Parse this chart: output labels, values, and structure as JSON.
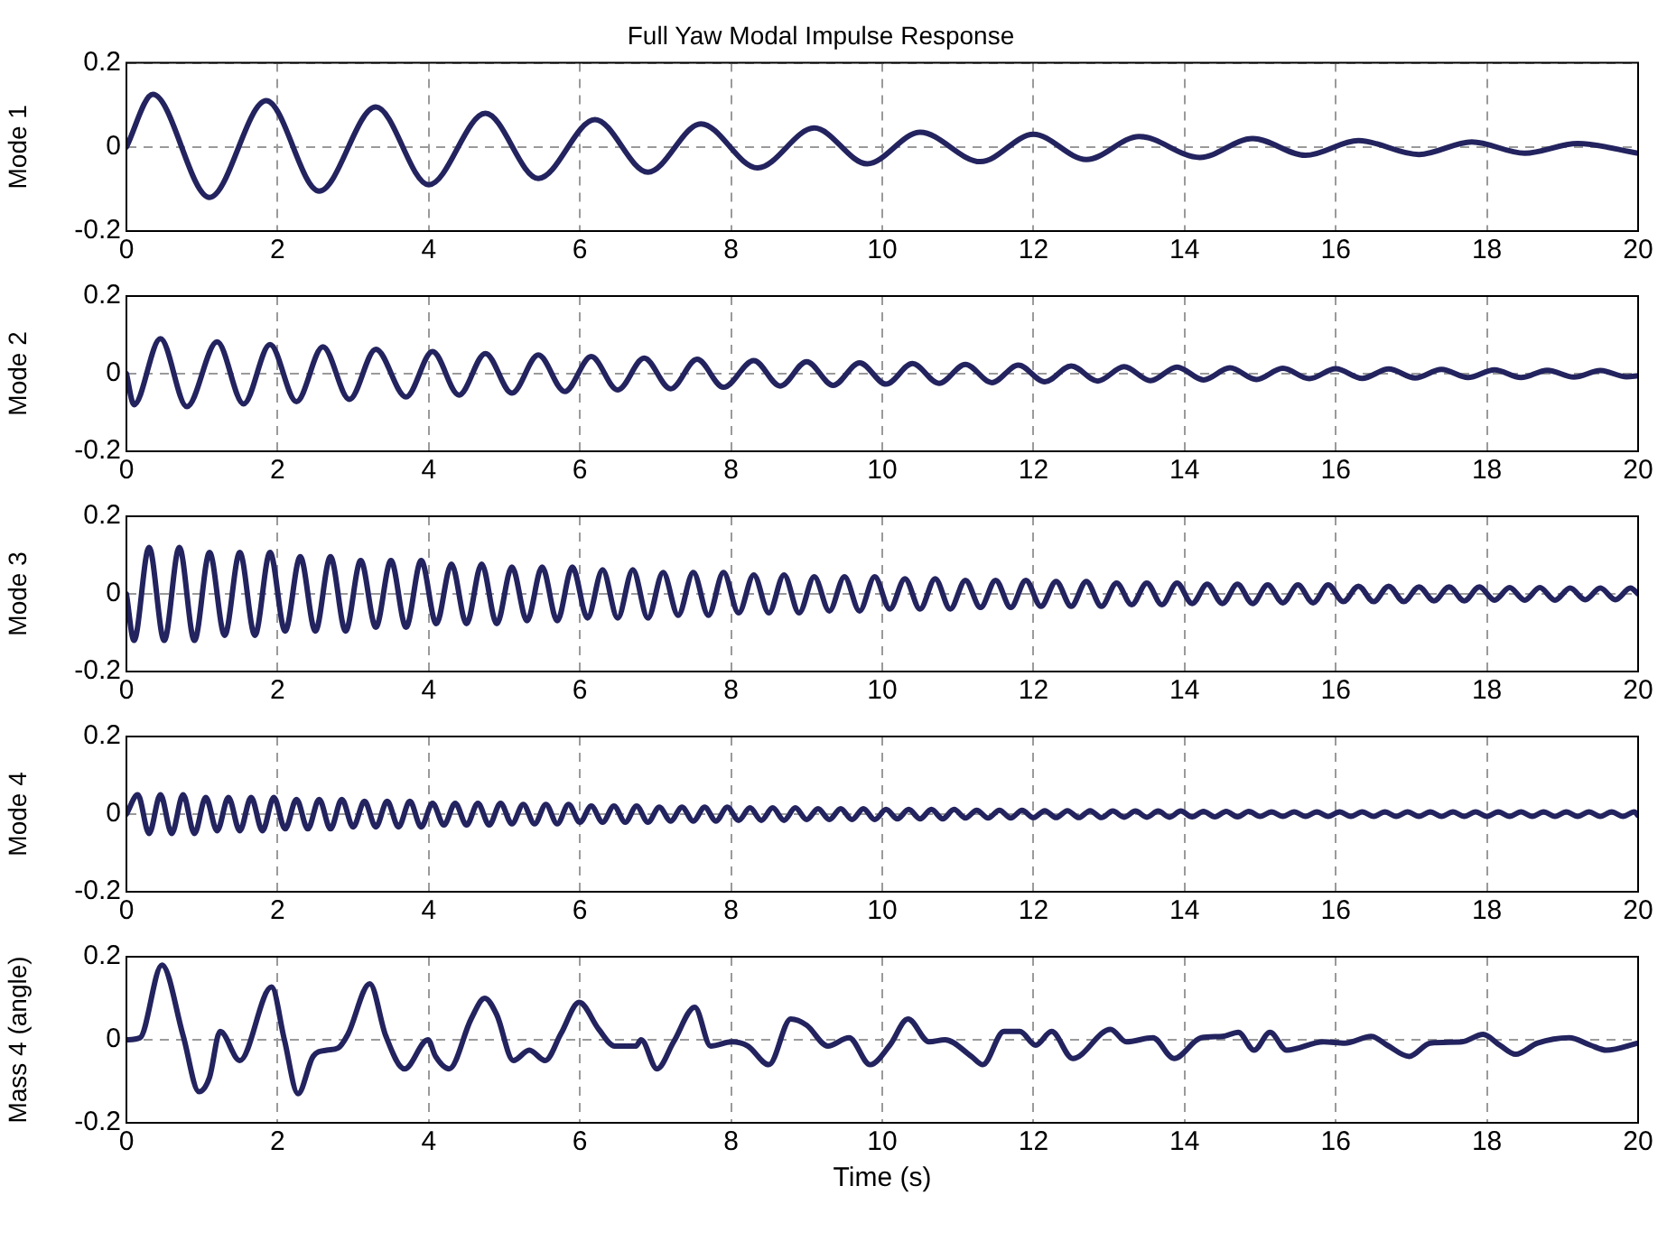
{
  "chart_data": [
    {
      "type": "line",
      "title": "Full Yaw Modal Impulse Response",
      "ylabel": "Mode 1",
      "xlim": [
        0,
        20
      ],
      "xticks": [
        0,
        2,
        4,
        6,
        8,
        10,
        12,
        14,
        16,
        18,
        20
      ],
      "ylim": [
        -0.2,
        0.2
      ],
      "yticks": [
        -0.2,
        0,
        0.2
      ],
      "grid": true,
      "series": [
        {
          "color": "#23235f",
          "x": [
            0,
            0.35,
            1.1,
            1.85,
            2.55,
            3.3,
            4.0,
            4.75,
            5.45,
            6.2,
            6.9,
            7.6,
            8.35,
            9.1,
            9.8,
            10.5,
            11.3,
            12,
            12.7,
            13.4,
            14.2,
            14.9,
            15.6,
            16.3,
            17.1,
            17.8,
            18.5,
            19.2,
            20
          ],
          "values": [
            0,
            0.125,
            -0.12,
            0.11,
            -0.105,
            0.095,
            -0.09,
            0.08,
            -0.075,
            0.065,
            -0.06,
            0.055,
            -0.05,
            0.045,
            -0.04,
            0.035,
            -0.035,
            0.03,
            -0.03,
            0.025,
            -0.025,
            0.02,
            -0.02,
            0.015,
            -0.018,
            0.012,
            -0.015,
            0.008,
            -0.015
          ]
        }
      ]
    },
    {
      "type": "line",
      "ylabel": "Mode 2",
      "xlim": [
        0,
        20
      ],
      "xticks": [
        0,
        2,
        4,
        6,
        8,
        10,
        12,
        14,
        16,
        18,
        20
      ],
      "ylim": [
        -0.2,
        0.2
      ],
      "yticks": [
        -0.2,
        0,
        0.2
      ],
      "grid": true,
      "series": [
        {
          "color": "#23235f",
          "x": [
            0,
            0.1,
            0.45,
            0.8,
            1.2,
            1.55,
            1.9,
            2.25,
            2.6,
            2.95,
            3.3,
            3.7,
            4.05,
            4.4,
            4.75,
            5.1,
            5.45,
            5.8,
            6.15,
            6.5,
            6.85,
            7.2,
            7.55,
            7.9,
            8.3,
            8.65,
            9,
            9.35,
            9.7,
            10.05,
            10.4,
            10.75,
            11.1,
            11.45,
            11.8,
            12.15,
            12.5,
            12.85,
            13.2,
            13.55,
            13.9,
            14.25,
            14.6,
            14.95,
            15.3,
            15.65,
            16,
            16.35,
            16.7,
            17.05,
            17.4,
            17.75,
            18.1,
            18.45,
            18.8,
            19.15,
            19.5,
            19.85,
            20
          ],
          "values": [
            0,
            -0.08,
            0.09,
            -0.085,
            0.082,
            -0.078,
            0.075,
            -0.072,
            0.069,
            -0.066,
            0.063,
            -0.06,
            0.057,
            -0.055,
            0.052,
            -0.05,
            0.048,
            -0.046,
            0.044,
            -0.042,
            0.04,
            -0.039,
            0.037,
            -0.035,
            0.034,
            -0.032,
            0.031,
            -0.03,
            0.028,
            -0.027,
            0.026,
            -0.025,
            0.024,
            -0.023,
            0.022,
            -0.021,
            0.02,
            -0.019,
            0.018,
            -0.018,
            0.017,
            -0.016,
            0.015,
            -0.015,
            0.014,
            -0.013,
            0.013,
            -0.012,
            0.012,
            -0.011,
            0.011,
            -0.01,
            0.01,
            -0.01,
            0.009,
            -0.009,
            0.008,
            -0.008,
            -0.005
          ]
        }
      ]
    },
    {
      "type": "line",
      "ylabel": "Mode 3",
      "xlim": [
        0,
        20
      ],
      "xticks": [
        0,
        2,
        4,
        6,
        8,
        10,
        12,
        14,
        16,
        18,
        20
      ],
      "ylim": [
        -0.2,
        0.2
      ],
      "yticks": [
        -0.2,
        0,
        0.2
      ],
      "grid": true,
      "series": [
        {
          "color": "#23235f",
          "x": [
            0,
            0.1,
            0.3,
            0.5,
            0.7,
            0.9,
            1.1,
            1.3,
            1.5,
            1.7,
            1.9,
            2.1,
            2.3,
            2.5,
            2.7,
            2.9,
            3.1,
            3.3,
            3.5,
            3.7,
            3.9,
            4.1,
            4.3,
            4.5,
            4.7,
            4.9,
            5.1,
            5.3,
            5.5,
            5.7,
            5.9,
            6.1,
            6.3,
            6.5,
            6.7,
            6.9,
            7.1,
            7.3,
            7.5,
            7.7,
            7.9,
            8.1,
            8.3,
            8.5,
            8.7,
            8.9,
            9.1,
            9.3,
            9.5,
            9.7,
            9.9,
            10.1,
            10.3,
            10.5,
            10.7,
            10.9,
            11.1,
            11.3,
            11.5,
            11.7,
            11.9,
            12.1,
            12.3,
            12.5,
            12.7,
            12.9,
            13.1,
            13.3,
            13.5,
            13.7,
            13.9,
            14.1,
            14.3,
            14.5,
            14.7,
            14.9,
            15.1,
            15.3,
            15.5,
            15.7,
            15.9,
            16.1,
            16.3,
            16.5,
            16.7,
            16.9,
            17.1,
            17.3,
            17.5,
            17.7,
            17.9,
            18.1,
            18.3,
            18.5,
            18.7,
            18.9,
            19.1,
            19.3,
            19.5,
            19.7,
            19.9,
            20
          ],
          "values": [
            0,
            -0.12,
            0.12,
            -0.12,
            0.12,
            -0.12,
            0.107,
            -0.107,
            0.107,
            -0.107,
            0.107,
            -0.096,
            0.096,
            -0.096,
            0.096,
            -0.096,
            0.086,
            -0.086,
            0.086,
            -0.086,
            0.086,
            -0.077,
            0.077,
            -0.077,
            0.077,
            -0.077,
            0.069,
            -0.069,
            0.069,
            -0.069,
            0.069,
            -0.062,
            0.062,
            -0.062,
            0.062,
            -0.062,
            0.055,
            -0.055,
            0.055,
            -0.055,
            0.055,
            -0.049,
            0.049,
            -0.049,
            0.049,
            -0.049,
            0.044,
            -0.044,
            0.044,
            -0.044,
            0.044,
            -0.039,
            0.039,
            -0.039,
            0.039,
            -0.039,
            0.035,
            -0.035,
            0.035,
            -0.035,
            0.035,
            -0.032,
            0.032,
            -0.032,
            0.032,
            -0.032,
            0.028,
            -0.028,
            0.028,
            -0.028,
            0.028,
            -0.025,
            0.025,
            -0.025,
            0.025,
            -0.025,
            0.023,
            -0.023,
            0.023,
            -0.023,
            0.023,
            -0.02,
            0.02,
            -0.02,
            0.02,
            -0.02,
            0.018,
            -0.018,
            0.018,
            -0.018,
            0.018,
            -0.016,
            0.016,
            -0.016,
            0.016,
            -0.016,
            0.015,
            -0.015,
            0.015,
            -0.015,
            0.015,
            0
          ]
        }
      ]
    },
    {
      "type": "line",
      "ylabel": "Mode 4",
      "xlim": [
        0,
        20
      ],
      "xticks": [
        0,
        2,
        4,
        6,
        8,
        10,
        12,
        14,
        16,
        18,
        20
      ],
      "ylim": [
        -0.2,
        0.2
      ],
      "yticks": [
        -0.2,
        0,
        0.2
      ],
      "grid": true,
      "series": [
        {
          "color": "#23235f",
          "x": [
            0,
            0.15,
            0.3,
            0.45,
            0.6,
            0.75,
            0.9,
            1.05,
            1.2,
            1.35,
            1.5,
            1.65,
            1.8,
            1.95,
            2.1,
            2.25,
            2.4,
            2.55,
            2.7,
            2.85,
            3,
            3.15,
            3.3,
            3.45,
            3.6,
            3.75,
            3.9,
            4.05,
            4.2,
            4.35,
            4.5,
            4.65,
            4.8,
            4.95,
            5.1,
            5.25,
            5.4,
            5.55,
            5.7,
            5.85,
            6,
            6.15,
            6.3,
            6.45,
            6.6,
            6.75,
            6.9,
            7.05,
            7.2,
            7.35,
            7.5,
            7.65,
            7.8,
            7.95,
            8.1,
            8.25,
            8.4,
            8.55,
            8.7,
            8.85,
            9,
            9.15,
            9.3,
            9.45,
            9.6,
            9.75,
            9.9,
            10.05,
            10.2,
            10.35,
            10.5,
            10.65,
            10.8,
            10.95,
            11.1,
            11.25,
            11.4,
            11.55,
            11.7,
            11.85,
            12,
            12.15,
            12.3,
            12.45,
            12.6,
            12.75,
            12.9,
            13.05,
            13.2,
            13.35,
            13.5,
            13.65,
            13.8,
            13.95,
            14.1,
            14.25,
            14.4,
            14.55,
            14.7,
            14.85,
            15,
            15.15,
            15.3,
            15.45,
            15.6,
            15.75,
            15.9,
            16.05,
            16.2,
            16.35,
            16.5,
            16.65,
            16.8,
            16.95,
            17.1,
            17.25,
            17.4,
            17.55,
            17.7,
            17.85,
            18,
            18.15,
            18.3,
            18.45,
            18.6,
            18.75,
            18.9,
            19.05,
            19.2,
            19.35,
            19.5,
            19.65,
            19.8,
            19.95,
            20
          ],
          "values": [
            0,
            0.05,
            -0.05,
            0.05,
            -0.05,
            0.05,
            -0.05,
            0.043,
            -0.043,
            0.043,
            -0.043,
            0.043,
            -0.043,
            0.043,
            -0.038,
            0.038,
            -0.038,
            0.038,
            -0.038,
            0.038,
            -0.033,
            0.033,
            -0.033,
            0.033,
            -0.033,
            0.033,
            -0.033,
            0.028,
            -0.028,
            0.028,
            -0.028,
            0.028,
            -0.028,
            0.028,
            -0.025,
            0.025,
            -0.025,
            0.025,
            -0.025,
            0.025,
            -0.021,
            0.021,
            -0.021,
            0.021,
            -0.021,
            0.021,
            -0.021,
            0.018,
            -0.018,
            0.018,
            -0.018,
            0.018,
            -0.018,
            0.018,
            -0.016,
            0.016,
            -0.016,
            0.016,
            -0.016,
            0.016,
            -0.014,
            0.014,
            -0.014,
            0.014,
            -0.014,
            0.014,
            -0.014,
            0.012,
            -0.012,
            0.012,
            -0.012,
            0.012,
            -0.012,
            0.012,
            -0.01,
            0.01,
            -0.01,
            0.01,
            -0.01,
            0.01,
            -0.009,
            0.009,
            -0.009,
            0.009,
            -0.009,
            0.009,
            -0.009,
            0.008,
            -0.008,
            0.008,
            -0.008,
            0.008,
            -0.008,
            0.008,
            -0.007,
            0.007,
            -0.007,
            0.007,
            -0.007,
            0.007,
            -0.006,
            0.006,
            -0.006,
            0.006,
            -0.006,
            0.006,
            -0.006,
            0.006,
            -0.006,
            0.006,
            -0.006,
            0.006,
            -0.006,
            0.006,
            -0.006,
            0.006,
            -0.006,
            0.006,
            -0.006,
            0.006,
            -0.006,
            0.006,
            -0.006,
            0.006,
            -0.006,
            0.006,
            -0.006,
            0.006,
            -0.006,
            0.006,
            -0.006,
            0.006,
            -0.006,
            0.006,
            -0.004
          ]
        }
      ]
    },
    {
      "type": "line",
      "ylabel": "Mass 4 (angle)",
      "xlabel": "Time (s)",
      "xlim": [
        0,
        20
      ],
      "xticks": [
        0,
        2,
        4,
        6,
        8,
        10,
        12,
        14,
        16,
        18,
        20
      ],
      "ylim": [
        -0.2,
        0.2
      ],
      "yticks": [
        -0.2,
        0,
        0.2
      ],
      "grid": true,
      "series": [
        {
          "color": "#23235f",
          "x": [
            0,
            0.18,
            0.47,
            0.75,
            0.96,
            1.1,
            1.24,
            1.5,
            1.92,
            2.09,
            2.27,
            2.47,
            2.65,
            2.8,
            2.93,
            3.22,
            3.43,
            3.68,
            3.99,
            4.09,
            4.27,
            4.56,
            4.74,
            4.9,
            5.12,
            5.33,
            5.54,
            5.75,
            5.99,
            6.25,
            6.46,
            6.74,
            6.81,
            7.02,
            7.24,
            7.52,
            7.73,
            8.01,
            8.22,
            8.5,
            8.79,
            9,
            9.28,
            9.56,
            9.84,
            10.1,
            10.34,
            10.62,
            10.83,
            11.18,
            11.33,
            11.61,
            11.82,
            12.03,
            12.24,
            12.52,
            13.02,
            13.23,
            13.58,
            13.86,
            14.22,
            14.5,
            14.71,
            14.92,
            15.13,
            15.35,
            15.84,
            16.12,
            16.47,
            16.68,
            16.97,
            17.25,
            17.67,
            17.95,
            18.17,
            18.38,
            18.67,
            19.09,
            19.37,
            19.58,
            20
          ],
          "values": [
            0,
            0.005,
            0.18,
            0.01,
            -0.125,
            -0.09,
            0.02,
            -0.05,
            0.127,
            0,
            -0.13,
            -0.04,
            -0.025,
            -0.02,
            0.013,
            0.135,
            0.01,
            -0.07,
            0,
            -0.04,
            -0.07,
            0.05,
            0.1,
            0.06,
            -0.05,
            -0.025,
            -0.05,
            0.015,
            0.09,
            0.025,
            -0.015,
            -0.015,
            0,
            -0.07,
            -0.005,
            0.078,
            -0.015,
            -0.005,
            -0.015,
            -0.06,
            0.05,
            0.035,
            -0.015,
            0.005,
            -0.06,
            -0.013,
            0.05,
            -0.005,
            0,
            -0.04,
            -0.06,
            0.02,
            0.02,
            -0.013,
            0.02,
            -0.045,
            0.025,
            -0.005,
            0.005,
            -0.045,
            0.005,
            0.008,
            0.018,
            -0.025,
            0.018,
            -0.025,
            -0.005,
            -0.008,
            0.008,
            -0.013,
            -0.04,
            -0.008,
            -0.005,
            0.013,
            -0.013,
            -0.035,
            -0.008,
            0.005,
            -0.013,
            -0.025,
            -0.008
          ]
        }
      ]
    }
  ]
}
